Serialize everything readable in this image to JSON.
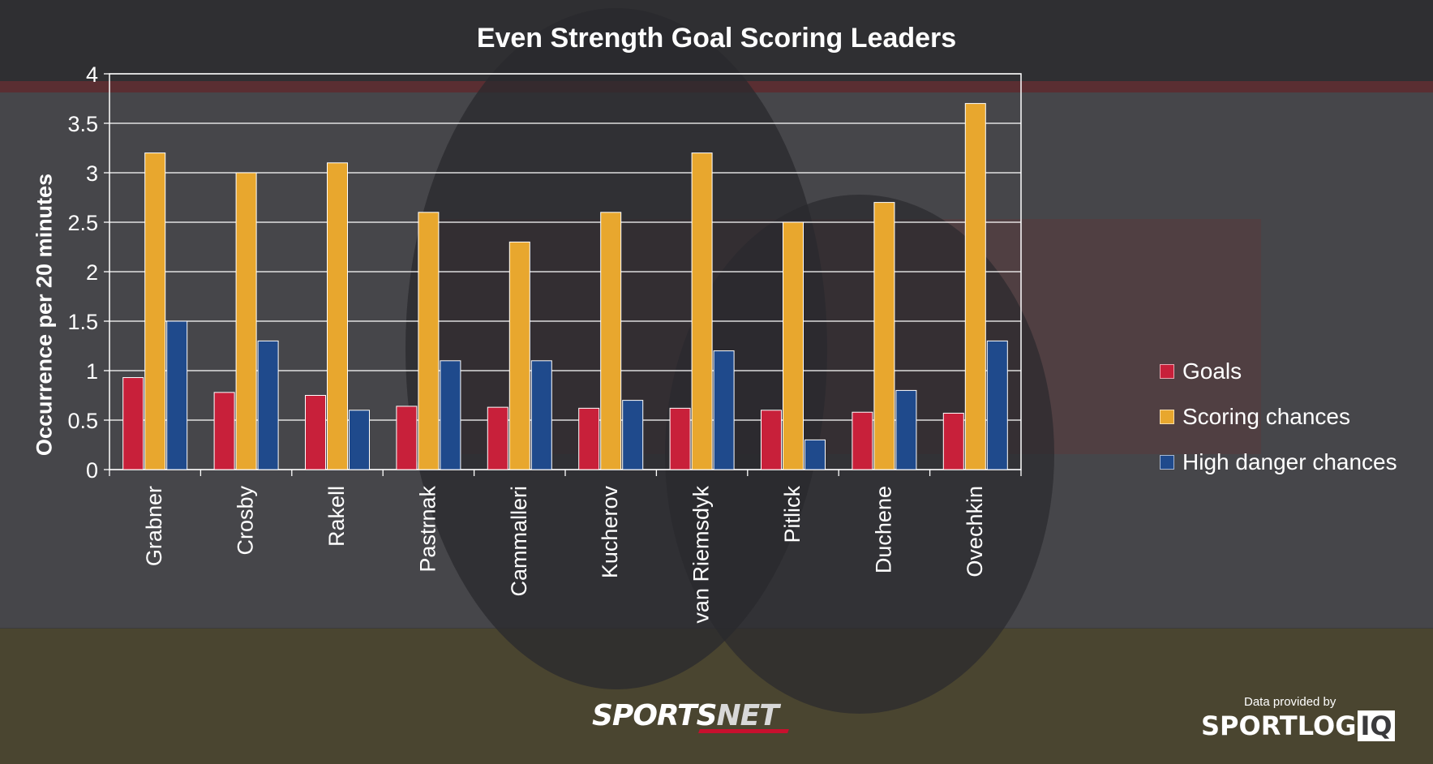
{
  "title": "Even Strength Goal Scoring Leaders",
  "ylabel": "Occurrence per 20 minutes",
  "colors": {
    "goals": "#c8203a",
    "scoring_chances": "#e8a72e",
    "high_danger": "#1f4a8c",
    "background": "#3a3a3c"
  },
  "chart_data": {
    "type": "bar",
    "categories": [
      "Grabner",
      "Crosby",
      "Rakell",
      "Pastrnak",
      "Cammalleri",
      "Kucherov",
      "van Riemsdyk",
      "Pitlick",
      "Duchene",
      "Ovechkin"
    ],
    "series": [
      {
        "name": "Goals",
        "values": [
          0.93,
          0.78,
          0.75,
          0.64,
          0.63,
          0.62,
          0.62,
          0.6,
          0.58,
          0.57
        ]
      },
      {
        "name": "Scoring chances",
        "values": [
          3.2,
          3.0,
          3.1,
          2.6,
          2.3,
          2.6,
          3.2,
          2.5,
          2.7,
          3.7
        ]
      },
      {
        "name": "High danger chances",
        "values": [
          1.5,
          1.3,
          0.6,
          1.1,
          1.1,
          0.7,
          1.2,
          0.3,
          0.8,
          1.3
        ]
      }
    ],
    "ylim": [
      0,
      4
    ],
    "yticks": [
      "0",
      "0.5",
      "1",
      "1.5",
      "2",
      "2.5",
      "3",
      "3.5",
      "4"
    ],
    "grid": true,
    "legend": "right"
  },
  "logos": {
    "sportsnet_a": "SPORTS",
    "sportsnet_b": "NET",
    "provided": "Data provided by",
    "sportlogiq_a": "SPORTLOG",
    "sportlogiq_b": "IQ"
  }
}
